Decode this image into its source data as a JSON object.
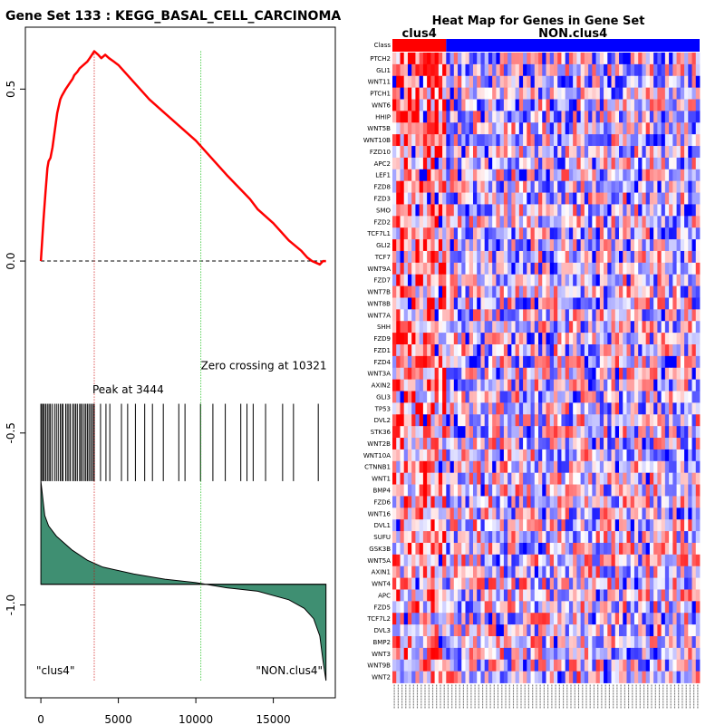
{
  "chart_data": [
    {
      "type": "line",
      "title": "Gene Set  133 : KEGG_BASAL_CELL_CARCINOMA",
      "xlim": [
        -1000,
        19000
      ],
      "ylim": [
        -1.27,
        0.68
      ],
      "xticks": [
        0,
        5000,
        10000,
        15000
      ],
      "xtick_labels": [
        "0",
        "5000",
        "10000",
        "15000"
      ],
      "yticks": [
        0.5,
        0.0,
        -0.5,
        -1.0
      ],
      "ytick_labels": [
        "0.5",
        "0.0",
        "-0.5",
        "-1.0"
      ],
      "enrichment_color": "#ff0000",
      "enrichment_curve": {
        "x": [
          0,
          170,
          300,
          420,
          500,
          620,
          750,
          900,
          1050,
          1250,
          1350,
          1600,
          1900,
          2050,
          2150,
          2350,
          2500,
          2750,
          3000,
          3150,
          3300,
          3444,
          3700,
          3900,
          4150,
          4400,
          4700,
          5000,
          6000,
          7000,
          8000,
          9000,
          10000,
          11000,
          12000,
          13500,
          14000,
          15000,
          16000,
          16800,
          17200,
          17500,
          18000,
          18200,
          18400
        ],
        "y": [
          0.0,
          0.12,
          0.2,
          0.27,
          0.29,
          0.3,
          0.33,
          0.38,
          0.43,
          0.47,
          0.48,
          0.5,
          0.52,
          0.53,
          0.54,
          0.55,
          0.56,
          0.57,
          0.58,
          0.59,
          0.6,
          0.61,
          0.6,
          0.59,
          0.6,
          0.59,
          0.58,
          0.57,
          0.52,
          0.47,
          0.43,
          0.39,
          0.35,
          0.3,
          0.25,
          0.18,
          0.15,
          0.11,
          0.06,
          0.03,
          0.01,
          0.0,
          -0.01,
          0.0,
          0.0
        ]
      },
      "baseline_y": 0.0,
      "peak_x": 3444,
      "peak_label": "Peak at 3444",
      "peak_color": "#cc0000",
      "zero_crossing_x": 10321,
      "zero_crossing_label": "Zero crossing at 10321",
      "zero_crossing_color": "#00bb00",
      "hit_positions": [
        0,
        60,
        150,
        220,
        320,
        420,
        520,
        600,
        720,
        880,
        1000,
        1120,
        1250,
        1350,
        1430,
        1600,
        1700,
        1800,
        1900,
        2050,
        2150,
        2250,
        2350,
        2500,
        2580,
        2680,
        2800,
        2900,
        3000,
        3100,
        3200,
        3300,
        3400,
        3444,
        3850,
        4200,
        4450,
        5200,
        5600,
        6100,
        6700,
        7200,
        7900,
        8900,
        9300,
        10300,
        11100,
        11900,
        12900,
        13300,
        13700,
        14500,
        15600,
        16300,
        17900
      ],
      "ranked_metric": {
        "fill_color": "#3f8f72",
        "zero_level": -0.94,
        "x": [
          0,
          250,
          500,
          1000,
          2000,
          3000,
          4000,
          6000,
          8000,
          10000,
          12000,
          14000,
          16000,
          17000,
          17600,
          18000,
          18200,
          18400
        ],
        "y": [
          -0.64,
          -0.74,
          -0.77,
          -0.8,
          -0.84,
          -0.87,
          -0.89,
          -0.91,
          -0.925,
          -0.935,
          -0.95,
          -0.96,
          -0.985,
          -1.01,
          -1.04,
          -1.09,
          -1.16,
          -1.22
        ]
      },
      "left_class_label": "\"clus4\"",
      "right_class_label": "\"NON.clus4\""
    },
    {
      "type": "heatmap",
      "title": "Heat Map for Genes in Gene Set",
      "class_label": "Class",
      "class_groups": [
        {
          "name": "clus4",
          "count": 14,
          "color": "#ff0000"
        },
        {
          "name": "NON.clus4",
          "count": 66,
          "color": "#0000ff"
        }
      ],
      "genes": [
        "PTCH2",
        "GLI1",
        "WNT11",
        "PTCH1",
        "WNT6",
        "HHIP",
        "WNT5B",
        "WNT10B",
        "FZD10",
        "APC2",
        "LEF1",
        "FZD8",
        "FZD3",
        "SMO",
        "FZD2",
        "TCF7L1",
        "GLI2",
        "TCF7",
        "WNT9A",
        "FZD7",
        "WNT7B",
        "WNT8B",
        "WNT7A",
        "SHH",
        "FZD9",
        "FZD1",
        "FZD4",
        "WNT3A",
        "AXIN2",
        "GLI3",
        "TP53",
        "DVL2",
        "STK36",
        "WNT2B",
        "WNT10A",
        "CTNNB1",
        "WNT1",
        "BMP4",
        "FZD6",
        "WNT16",
        "DVL1",
        "SUFU",
        "GSK3B",
        "WNT5A",
        "AXIN1",
        "WNT4",
        "APC",
        "FZD5",
        "TCF7L2",
        "DVL3",
        "BMP2",
        "WNT3",
        "WNT9B",
        "WNT2"
      ],
      "color_scale": [
        "#0000ff",
        "#ffffff",
        "#ff0000"
      ]
    }
  ]
}
